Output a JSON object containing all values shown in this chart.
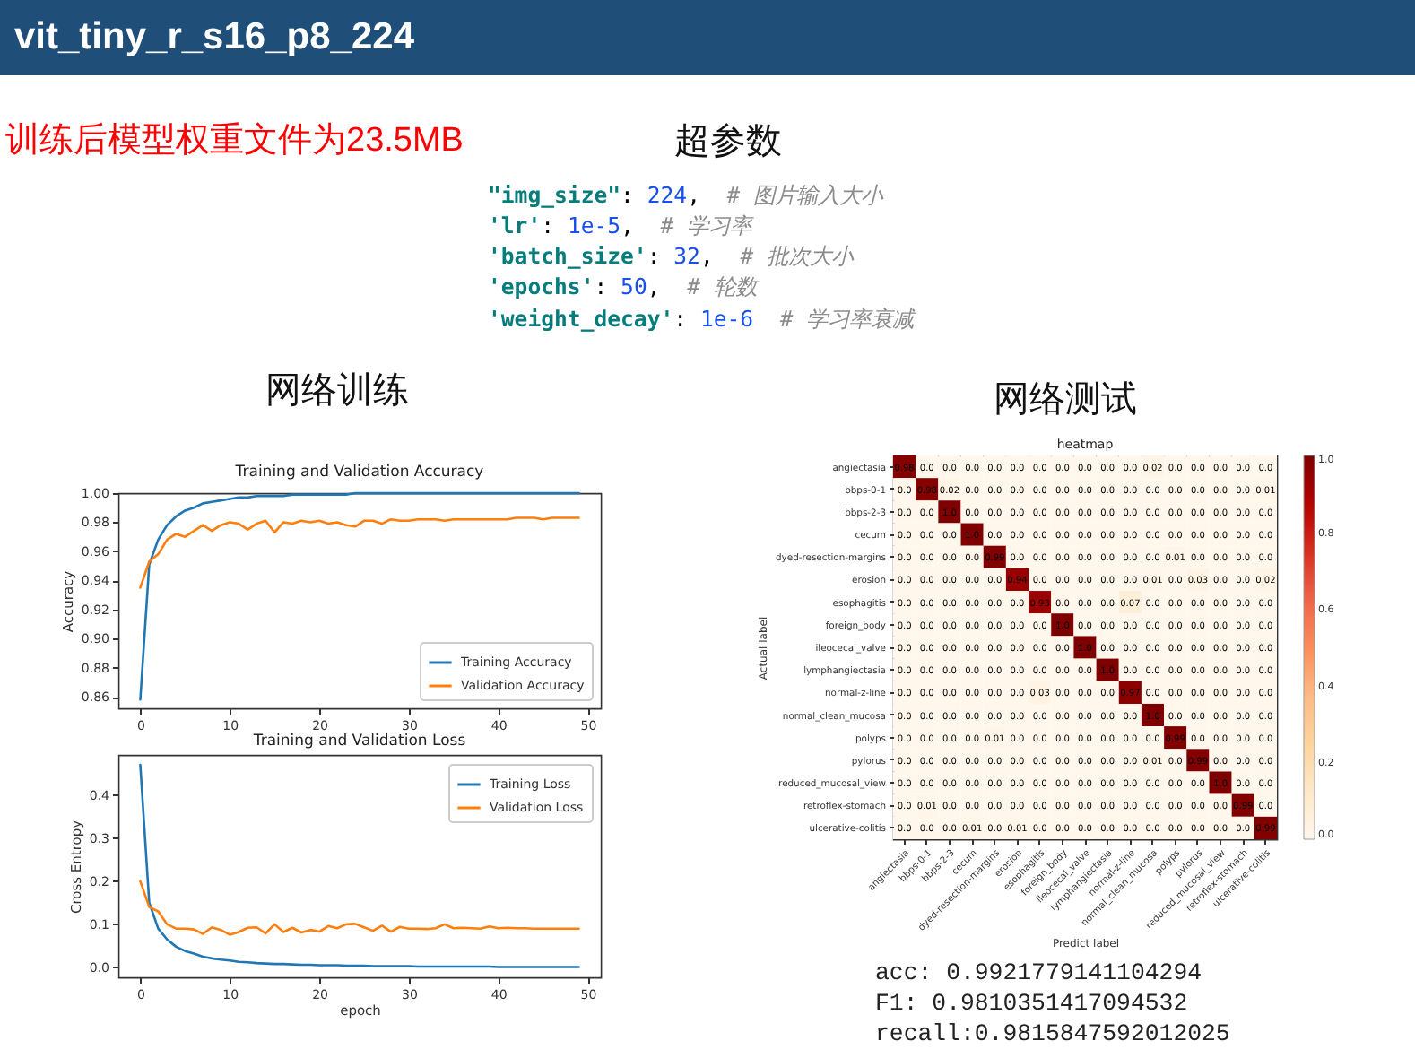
{
  "chart_data": [
    {
      "type": "other",
      "title": "vit_tiny_r_s16_p8_224",
      "annotations": [
        "训练后模型权重文件为23.5MB",
        "超参数",
        "\"img_size\": 224,  # 图片输入大小",
        "'lr': 1e-5,  # 学习率",
        "'batch_size': 32,  # 批次大小",
        "'epochs': 50,  # 轮数",
        "'weight_decay': 1e-6  # 学习率衰减",
        "网络训练",
        "网络测试",
        "acc: 0.9921779141104294",
        "F1: 0.9810351417094532",
        "recall:0.9815847592012025"
      ]
    },
    {
      "type": "line",
      "title": "Training and Validation Accuracy",
      "ylabel": "Accuracy",
      "legend": "bottom right",
      "x": [
        0,
        1,
        2,
        3,
        4,
        5,
        6,
        7,
        8,
        9,
        10,
        11,
        12,
        13,
        14,
        15,
        16,
        17,
        18,
        19,
        20,
        21,
        22,
        23,
        24,
        25,
        26,
        27,
        28,
        29,
        30,
        31,
        32,
        33,
        34,
        35,
        36,
        37,
        38,
        39,
        40,
        41,
        42,
        43,
        44,
        45,
        46,
        47,
        48,
        49
      ],
      "xlim": [
        -2.45,
        51.45
      ],
      "xticks": [
        0,
        10,
        20,
        30,
        40,
        50
      ],
      "ylim": [
        0.852,
        1.0
      ],
      "yticks": [
        0.86,
        0.88,
        {
          "value": 0.9,
          "label": "0.90"
        },
        0.92,
        0.94,
        0.96,
        0.98,
        {
          "value": 1,
          "label": "1.00"
        }
      ],
      "series": [
        {
          "name": "Training Accuracy",
          "color": "#1f77b4",
          "values": [
            0.858,
            0.951,
            0.968,
            0.978,
            0.984,
            0.988,
            0.99,
            0.993,
            0.994,
            0.995,
            0.996,
            0.997,
            0.997,
            0.998,
            0.998,
            0.998,
            0.998,
            0.999,
            0.999,
            0.999,
            0.999,
            0.999,
            0.999,
            0.999,
            1.0,
            1.0,
            1.0,
            1.0,
            1.0,
            1.0,
            1.0,
            1.0,
            1.0,
            1.0,
            1.0,
            1.0,
            1.0,
            1.0,
            1.0,
            1.0,
            1.0,
            1.0,
            1.0,
            1.0,
            1.0,
            1.0,
            1.0,
            1.0,
            1.0,
            1.0
          ]
        },
        {
          "name": "Validation Accuracy",
          "color": "#ff7f0e",
          "values": [
            0.935,
            0.953,
            0.958,
            0.968,
            0.972,
            0.97,
            0.974,
            0.978,
            0.974,
            0.978,
            0.98,
            0.979,
            0.975,
            0.979,
            0.981,
            0.973,
            0.98,
            0.979,
            0.981,
            0.98,
            0.981,
            0.979,
            0.98,
            0.978,
            0.977,
            0.981,
            0.981,
            0.979,
            0.982,
            0.981,
            0.981,
            0.982,
            0.982,
            0.982,
            0.981,
            0.982,
            0.982,
            0.982,
            0.982,
            0.982,
            0.982,
            0.982,
            0.983,
            0.983,
            0.983,
            0.982,
            0.983,
            0.983,
            0.983,
            0.983
          ]
        }
      ]
    },
    {
      "type": "line",
      "title": "Training and Validation Loss",
      "xlabel": "epoch",
      "ylabel": "Cross Entropy",
      "legend": "top right",
      "x": [
        0,
        1,
        2,
        3,
        4,
        5,
        6,
        7,
        8,
        9,
        10,
        11,
        12,
        13,
        14,
        15,
        16,
        17,
        18,
        19,
        20,
        21,
        22,
        23,
        24,
        25,
        26,
        27,
        28,
        29,
        30,
        31,
        32,
        33,
        34,
        35,
        36,
        37,
        38,
        39,
        40,
        41,
        42,
        43,
        44,
        45,
        46,
        47,
        48,
        49
      ],
      "xlim": [
        -2.45,
        51.45
      ],
      "xticks": [
        0,
        10,
        20,
        30,
        40,
        50
      ],
      "ylim": [
        -0.023,
        0.493
      ],
      "yticks": [
        {
          "value": 0,
          "label": "0.0"
        },
        0.1,
        0.2,
        0.3,
        0.4
      ],
      "series": [
        {
          "name": "Training Loss",
          "color": "#1f77b4",
          "values": [
            0.47,
            0.15,
            0.09,
            0.065,
            0.048,
            0.038,
            0.032,
            0.025,
            0.021,
            0.018,
            0.016,
            0.013,
            0.012,
            0.01,
            0.009,
            0.008,
            0.008,
            0.007,
            0.006,
            0.006,
            0.005,
            0.005,
            0.005,
            0.004,
            0.004,
            0.004,
            0.003,
            0.003,
            0.003,
            0.003,
            0.003,
            0.002,
            0.002,
            0.002,
            0.002,
            0.002,
            0.002,
            0.002,
            0.002,
            0.002,
            0.001,
            0.001,
            0.001,
            0.001,
            0.001,
            0.001,
            0.001,
            0.001,
            0.001,
            0.001
          ]
        },
        {
          "name": "Validation Loss",
          "color": "#ff7f0e",
          "values": [
            0.2,
            0.14,
            0.13,
            0.1,
            0.09,
            0.09,
            0.088,
            0.078,
            0.093,
            0.087,
            0.076,
            0.082,
            0.092,
            0.093,
            0.079,
            0.1,
            0.082,
            0.092,
            0.081,
            0.087,
            0.083,
            0.096,
            0.091,
            0.1,
            0.101,
            0.093,
            0.085,
            0.097,
            0.083,
            0.094,
            0.09,
            0.09,
            0.089,
            0.091,
            0.1,
            0.091,
            0.092,
            0.091,
            0.09,
            0.095,
            0.091,
            0.092,
            0.091,
            0.091,
            0.09,
            0.09,
            0.09,
            0.09,
            0.09,
            0.09
          ]
        }
      ]
    },
    {
      "type": "heatmap",
      "title": "heatmap",
      "xlabel": "Predict label",
      "ylabel": "Actual label",
      "categories": [
        "angiectasia",
        "bbps-0-1",
        "bbps-2-3",
        "cecum",
        "dyed-resection-margins",
        "erosion",
        "esophagitis",
        "foreign_body",
        "ileocecal_valve",
        "lymphangiectasia",
        "normal-z-line",
        "normal_clean_mucosa",
        "polyps",
        "pylorus",
        "reduced_mucosal_view",
        "retroflex-stomach",
        "ulcerative-colitis"
      ],
      "y_categories": [
        "angiectasia",
        "bbps-0-1",
        "bbps-2-3",
        "cecum",
        "dyed-resection-margins",
        "erosion",
        "esophagitis",
        "foreign_body",
        "ileocecal_valve",
        "lymphangiectasia",
        "normal-z-line",
        "normal_clean_mucosa",
        "polyps",
        "pylorus",
        "reduced_mucosal_view",
        "retroflex-stomach",
        "ulcerative-colitis"
      ],
      "cells": [
        [
          0.98,
          0,
          0,
          0,
          0,
          0,
          0,
          0,
          0,
          0,
          0,
          0.02,
          0,
          0,
          0,
          0,
          0
        ],
        [
          0,
          0.98,
          0.02,
          0,
          0,
          0,
          0,
          0,
          0,
          0,
          0,
          0,
          0,
          0,
          0,
          0,
          0.01
        ],
        [
          0,
          0,
          1,
          0,
          0,
          0,
          0,
          0,
          0,
          0,
          0,
          0,
          0,
          0,
          0,
          0,
          0
        ],
        [
          0,
          0,
          0,
          1,
          0,
          0,
          0,
          0,
          0,
          0,
          0,
          0,
          0,
          0,
          0,
          0,
          0
        ],
        [
          0,
          0,
          0,
          0,
          0.99,
          0,
          0,
          0,
          0,
          0,
          0,
          0,
          0.01,
          0,
          0,
          0,
          0
        ],
        [
          0,
          0,
          0,
          0,
          0,
          0.94,
          0,
          0,
          0,
          0,
          0,
          0.01,
          0,
          0.03,
          0,
          0,
          0.02
        ],
        [
          0,
          0,
          0,
          0,
          0,
          0,
          0.93,
          0,
          0,
          0,
          0.07,
          0,
          0,
          0,
          0,
          0,
          0
        ],
        [
          0,
          0,
          0,
          0,
          0,
          0,
          0,
          1,
          0,
          0,
          0,
          0,
          0,
          0,
          0,
          0,
          0
        ],
        [
          0,
          0,
          0,
          0,
          0,
          0,
          0,
          0,
          1,
          0,
          0,
          0,
          0,
          0,
          0,
          0,
          0
        ],
        [
          0,
          0,
          0,
          0,
          0,
          0,
          0,
          0,
          0,
          1,
          0,
          0,
          0,
          0,
          0,
          0,
          0
        ],
        [
          0,
          0,
          0,
          0,
          0,
          0,
          0.03,
          0,
          0,
          0,
          0.97,
          0,
          0,
          0,
          0,
          0,
          0
        ],
        [
          0,
          0,
          0,
          0,
          0,
          0,
          0,
          0,
          0,
          0,
          0,
          1,
          0,
          0,
          0,
          0,
          0
        ],
        [
          0,
          0,
          0,
          0,
          0.01,
          0,
          0,
          0,
          0,
          0,
          0,
          0,
          0.99,
          0,
          0,
          0,
          0
        ],
        [
          0,
          0,
          0,
          0,
          0,
          0,
          0,
          0,
          0,
          0,
          0,
          0.01,
          0,
          0.99,
          0,
          0,
          0
        ],
        [
          0,
          0,
          0,
          0,
          0,
          0,
          0,
          0,
          0,
          0,
          0,
          0,
          0,
          0,
          1,
          0,
          0
        ],
        [
          0,
          0.01,
          0,
          0,
          0,
          0,
          0,
          0,
          0,
          0,
          0,
          0,
          0,
          0,
          0,
          0.99,
          0
        ],
        [
          0,
          0,
          0,
          0.01,
          0,
          0.01,
          0,
          0,
          0,
          0,
          0,
          0,
          0,
          0,
          0,
          0,
          0.99
        ]
      ],
      "cell_labels": [
        [
          "0.98",
          "0.0",
          "0.0",
          "0.0",
          "0.0",
          "0.0",
          "0.0",
          "0.0",
          "0.0",
          "0.0",
          "0.0",
          "0.02",
          "0.0",
          "0.0",
          "0.0",
          "0.0",
          "0.0"
        ],
        [
          "0.0",
          "0.98",
          "0.02",
          "0.0",
          "0.0",
          "0.0",
          "0.0",
          "0.0",
          "0.0",
          "0.0",
          "0.0",
          "0.0",
          "0.0",
          "0.0",
          "0.0",
          "0.0",
          "0.01"
        ],
        [
          "0.0",
          "0.0",
          "1.0",
          "0.0",
          "0.0",
          "0.0",
          "0.0",
          "0.0",
          "0.0",
          "0.0",
          "0.0",
          "0.0",
          "0.0",
          "0.0",
          "0.0",
          "0.0",
          "0.0"
        ],
        [
          "0.0",
          "0.0",
          "0.0",
          "1.0",
          "0.0",
          "0.0",
          "0.0",
          "0.0",
          "0.0",
          "0.0",
          "0.0",
          "0.0",
          "0.0",
          "0.0",
          "0.0",
          "0.0",
          "0.0"
        ],
        [
          "0.0",
          "0.0",
          "0.0",
          "0.0",
          "0.99",
          "0.0",
          "0.0",
          "0.0",
          "0.0",
          "0.0",
          "0.0",
          "0.0",
          "0.01",
          "0.0",
          "0.0",
          "0.0",
          "0.0"
        ],
        [
          "0.0",
          "0.0",
          "0.0",
          "0.0",
          "0.0",
          "0.94",
          "0.0",
          "0.0",
          "0.0",
          "0.0",
          "0.0",
          "0.01",
          "0.0",
          "0.03",
          "0.0",
          "0.0",
          "0.02"
        ],
        [
          "0.0",
          "0.0",
          "0.0",
          "0.0",
          "0.0",
          "0.0",
          "0.93",
          "0.0",
          "0.0",
          "0.0",
          "0.07",
          "0.0",
          "0.0",
          "0.0",
          "0.0",
          "0.0",
          "0.0"
        ],
        [
          "0.0",
          "0.0",
          "0.0",
          "0.0",
          "0.0",
          "0.0",
          "0.0",
          "1.0",
          "0.0",
          "0.0",
          "0.0",
          "0.0",
          "0.0",
          "0.0",
          "0.0",
          "0.0",
          "0.0"
        ],
        [
          "0.0",
          "0.0",
          "0.0",
          "0.0",
          "0.0",
          "0.0",
          "0.0",
          "0.0",
          "1.0",
          "0.0",
          "0.0",
          "0.0",
          "0.0",
          "0.0",
          "0.0",
          "0.0",
          "0.0"
        ],
        [
          "0.0",
          "0.0",
          "0.0",
          "0.0",
          "0.0",
          "0.0",
          "0.0",
          "0.0",
          "0.0",
          "1.0",
          "0.0",
          "0.0",
          "0.0",
          "0.0",
          "0.0",
          "0.0",
          "0.0"
        ],
        [
          "0.0",
          "0.0",
          "0.0",
          "0.0",
          "0.0",
          "0.0",
          "0.03",
          "0.0",
          "0.0",
          "0.0",
          "0.97",
          "0.0",
          "0.0",
          "0.0",
          "0.0",
          "0.0",
          "0.0"
        ],
        [
          "0.0",
          "0.0",
          "0.0",
          "0.0",
          "0.0",
          "0.0",
          "0.0",
          "0.0",
          "0.0",
          "0.0",
          "0.0",
          "1.0",
          "0.0",
          "0.0",
          "0.0",
          "0.0",
          "0.0"
        ],
        [
          "0.0",
          "0.0",
          "0.0",
          "0.0",
          "0.01",
          "0.0",
          "0.0",
          "0.0",
          "0.0",
          "0.0",
          "0.0",
          "0.0",
          "0.99",
          "0.0",
          "0.0",
          "0.0",
          "0.0"
        ],
        [
          "0.0",
          "0.0",
          "0.0",
          "0.0",
          "0.0",
          "0.0",
          "0.0",
          "0.0",
          "0.0",
          "0.0",
          "0.0",
          "0.01",
          "0.0",
          "0.99",
          "0.0",
          "0.0",
          "0.0"
        ],
        [
          "0.0",
          "0.0",
          "0.0",
          "0.0",
          "0.0",
          "0.0",
          "0.0",
          "0.0",
          "0.0",
          "0.0",
          "0.0",
          "0.0",
          "0.0",
          "0.0",
          "1.0",
          "0.0",
          "0.0"
        ],
        [
          "0.0",
          "0.01",
          "0.0",
          "0.0",
          "0.0",
          "0.0",
          "0.0",
          "0.0",
          "0.0",
          "0.0",
          "0.0",
          "0.0",
          "0.0",
          "0.0",
          "0.0",
          "0.99",
          "0.0"
        ],
        [
          "0.0",
          "0.0",
          "0.0",
          "0.01",
          "0.0",
          "0.01",
          "0.0",
          "0.0",
          "0.0",
          "0.0",
          "0.0",
          "0.0",
          "0.0",
          "0.0",
          "0.0",
          "0.0",
          "0.99"
        ]
      ],
      "clim": [
        0,
        1
      ],
      "cticks": [
        {
          "value": 0,
          "label": "0.0"
        },
        0.2,
        0.4,
        0.6,
        0.8,
        {
          "value": 1,
          "label": "1.0"
        }
      ]
    }
  ]
}
